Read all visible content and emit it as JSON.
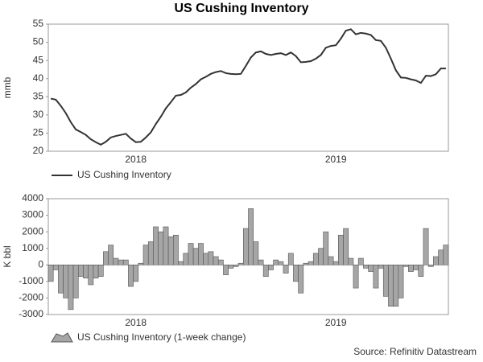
{
  "title": "US Cushing Inventory",
  "source": "Source: Refinitiv Datastream",
  "chart_data": [
    {
      "type": "line",
      "ylabel": "mmb",
      "ylim": [
        20,
        55
      ],
      "yticks": [
        20,
        25,
        30,
        35,
        40,
        45,
        50,
        55
      ],
      "categories": [
        null,
        null,
        null,
        null,
        null,
        null,
        null,
        null,
        null,
        null,
        null,
        null,
        null,
        null,
        null,
        null,
        null,
        "2018",
        null,
        null,
        null,
        null,
        null,
        null,
        null,
        null,
        null,
        null,
        null,
        null,
        null,
        null,
        null,
        null,
        null,
        null,
        null,
        null,
        null,
        null,
        null,
        null,
        null,
        null,
        null,
        null,
        null,
        null,
        null,
        null,
        null,
        null,
        null,
        null,
        null,
        null,
        null,
        "2019",
        null,
        null,
        null,
        null,
        null,
        null,
        null,
        null,
        null,
        null,
        null,
        null,
        null,
        null,
        null,
        null,
        null,
        null,
        null,
        null,
        null,
        null
      ],
      "series": [
        {
          "name": "US Cushing Inventory",
          "color": "#333333",
          "values": [
            34.5,
            34.2,
            32.5,
            30.5,
            28,
            26,
            25.3,
            24.5,
            23.3,
            22.5,
            21.8,
            22.6,
            23.8,
            24.2,
            24.5,
            24.8,
            23.5,
            22.5,
            22.6,
            23.8,
            25.2,
            27.5,
            29.5,
            31.8,
            33.5,
            35.3,
            35.5,
            36.2,
            37.5,
            38.5,
            39.8,
            40.5,
            41.3,
            41.8,
            42.1,
            41.5,
            41.3,
            41.2,
            41.3,
            43.5,
            45.8,
            47.2,
            47.5,
            46.8,
            46.5,
            46.8,
            47,
            46.5,
            47.2,
            46.2,
            44.5,
            44.6,
            44.8,
            45.5,
            46.5,
            48.5,
            49,
            49.2,
            51,
            53.2,
            53.6,
            52.2,
            52.6,
            52.4,
            52,
            50.6,
            50.4,
            48.5,
            45.5,
            42.3,
            40.3,
            40.2,
            39.8,
            39.5,
            38.8,
            40.8,
            40.7,
            41.2,
            42.8,
            42.8
          ]
        }
      ]
    },
    {
      "type": "bar",
      "ylabel": "K bbl",
      "ylim": [
        -3000,
        4000
      ],
      "yticks": [
        -3000,
        -2000,
        -1000,
        0,
        1000,
        2000,
        3000,
        4000
      ],
      "categories": [
        null,
        null,
        null,
        null,
        null,
        null,
        null,
        null,
        null,
        null,
        null,
        null,
        null,
        null,
        null,
        null,
        null,
        "2018",
        null,
        null,
        null,
        null,
        null,
        null,
        null,
        null,
        null,
        null,
        null,
        null,
        null,
        null,
        null,
        null,
        null,
        null,
        null,
        null,
        null,
        null,
        null,
        null,
        null,
        null,
        null,
        null,
        null,
        null,
        null,
        null,
        null,
        null,
        null,
        null,
        null,
        null,
        null,
        "2019",
        null,
        null,
        null,
        null,
        null,
        null,
        null,
        null,
        null,
        null,
        null,
        null,
        null,
        null,
        null,
        null,
        null,
        null,
        null,
        null,
        null,
        null
      ],
      "series": [
        {
          "name": "US Cushing Inventory (1-week change)",
          "color": "#a6a6a6",
          "values": [
            -1000,
            -300,
            -1700,
            -2000,
            -2700,
            -2000,
            -700,
            -800,
            -1200,
            -800,
            -700,
            800,
            1200,
            400,
            300,
            300,
            -1300,
            -1000,
            100,
            1200,
            1400,
            2300,
            2000,
            2300,
            1700,
            1800,
            200,
            700,
            1300,
            1000,
            1300,
            700,
            800,
            500,
            300,
            -600,
            -200,
            -100,
            100,
            2200,
            3400,
            1400,
            300,
            -700,
            -300,
            300,
            200,
            -500,
            700,
            -1000,
            -1700,
            100,
            200,
            700,
            1000,
            2000,
            500,
            200,
            1800,
            2200,
            400,
            -1400,
            400,
            -200,
            -400,
            -1400,
            -200,
            -1900,
            -2500,
            -2500,
            -2000,
            -100,
            -400,
            -300,
            -700,
            2200,
            -100,
            500,
            900,
            1200
          ]
        }
      ]
    }
  ]
}
